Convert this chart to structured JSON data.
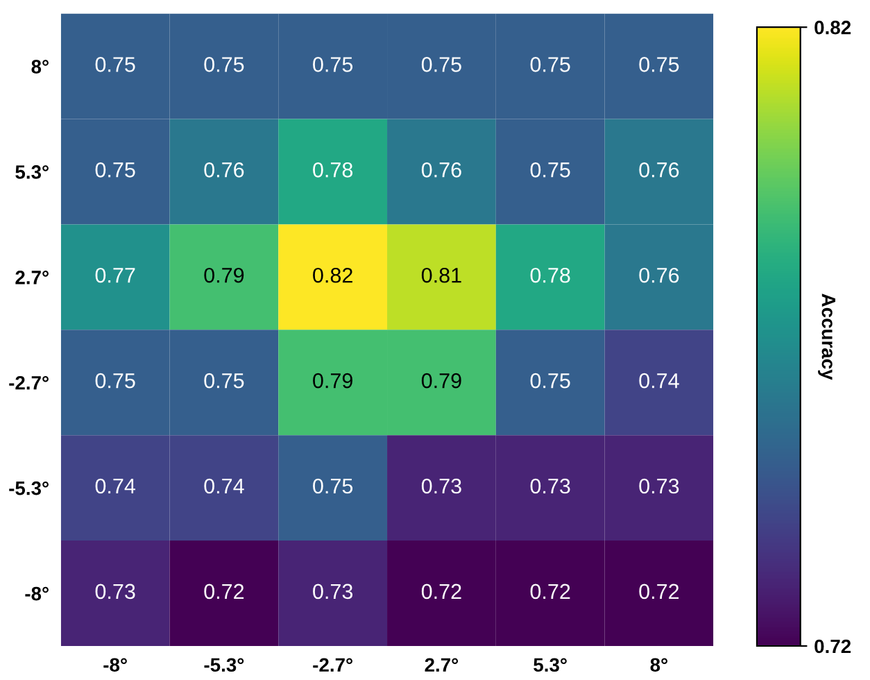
{
  "chart_data": {
    "type": "heatmap",
    "categories": [
      "-8°",
      "-5.3°",
      "-2.7°",
      "2.7°",
      "5.3°",
      "8°"
    ],
    "y_categories": [
      "8°",
      "5.3°",
      "2.7°",
      "-2.7°",
      "-5.3°",
      "-8°"
    ],
    "cells": [
      [
        0.75,
        0.75,
        0.75,
        0.75,
        0.75,
        0.75
      ],
      [
        0.75,
        0.76,
        0.78,
        0.76,
        0.75,
        0.76
      ],
      [
        0.77,
        0.79,
        0.82,
        0.81,
        0.78,
        0.76
      ],
      [
        0.75,
        0.75,
        0.79,
        0.79,
        0.75,
        0.74
      ],
      [
        0.74,
        0.74,
        0.75,
        0.73,
        0.73,
        0.73
      ],
      [
        0.73,
        0.72,
        0.73,
        0.72,
        0.72,
        0.72
      ]
    ],
    "data_labels": true,
    "clim": [
      0.72,
      0.82
    ],
    "cticks": [
      0.72,
      0.82
    ],
    "clabel": "Accuracy"
  }
}
